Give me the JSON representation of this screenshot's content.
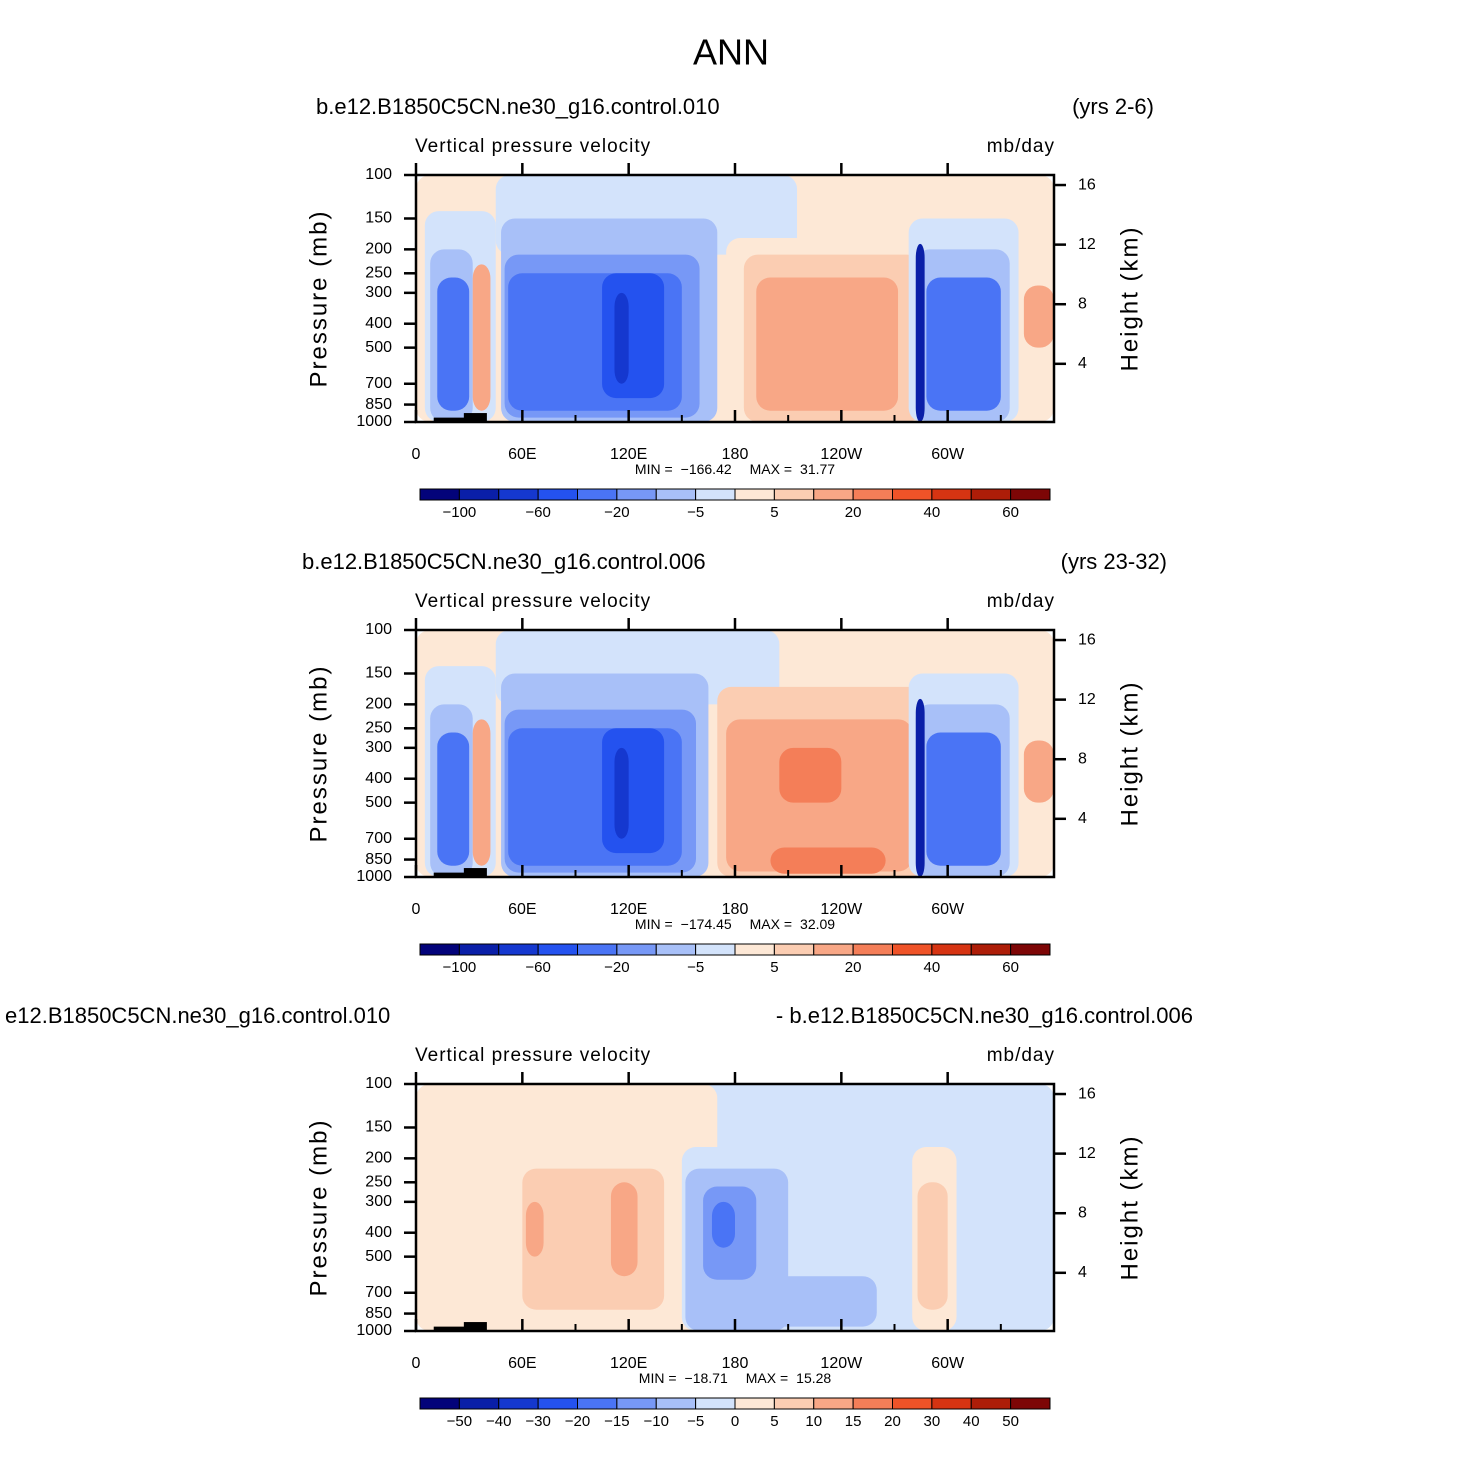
{
  "title": "ANN",
  "chart_data": [
    {
      "type": "contour",
      "title_left": "b.e12.B1850C5CN.ne30_g16.control.010",
      "title_right": "(yrs 2-6)",
      "left_string": "Vertical pressure velocity",
      "right_string": "mb/day",
      "ylabel": "Pressure (mb)",
      "y2label": "Height (km)",
      "log_y": true,
      "xlim": [
        0,
        360
      ],
      "ylim": [
        1000,
        100
      ],
      "xticks": [
        0,
        {
          "value": 60,
          "label": "60E"
        },
        {
          "value": 120,
          "label": "120E"
        },
        180,
        {
          "value": 240,
          "label": "120W"
        },
        {
          "value": 300,
          "label": "60W"
        }
      ],
      "xminorticks": [
        30,
        90,
        150,
        210,
        270,
        330
      ],
      "yticks": [
        100,
        150,
        200,
        250,
        300,
        400,
        500,
        700,
        850,
        1000
      ],
      "y2ticks": [
        4,
        8,
        12,
        16
      ],
      "stats": [
        {
          "name": "MIN =",
          "value": -166.42,
          "label": "−166.42"
        },
        {
          "name": "MAX =",
          "value": 31.77
        }
      ],
      "colorbar": {
        "colors": [
          "#03037a",
          "#0a1fa8",
          "#1538cf",
          "#2452ef",
          "#4a74f5",
          "#7798f6",
          "#a8c0f8",
          "#d3e3fb",
          "#fde8d6",
          "#fbcdb2",
          "#f8a786",
          "#f47e58",
          "#ef5328",
          "#d63412",
          "#ad1d08",
          "#7d0606"
        ],
        "ticks": [
          {
            "value": -100,
            "label": "−100"
          },
          {
            "value": -60,
            "label": "−60"
          },
          {
            "value": -20,
            "label": "−20"
          },
          {
            "value": -5,
            "label": "−5"
          },
          5,
          20,
          40,
          60
        ]
      }
    },
    {
      "type": "contour",
      "title_left": "b.e12.B1850C5CN.ne30_g16.control.006",
      "title_right": "(yrs 23-32)",
      "left_string": "Vertical pressure velocity",
      "right_string": "mb/day",
      "ylabel": "Pressure (mb)",
      "y2label": "Height (km)",
      "log_y": true,
      "xlim": [
        0,
        360
      ],
      "ylim": [
        1000,
        100
      ],
      "xticks": [
        0,
        {
          "value": 60,
          "label": "60E"
        },
        {
          "value": 120,
          "label": "120E"
        },
        180,
        {
          "value": 240,
          "label": "120W"
        },
        {
          "value": 300,
          "label": "60W"
        }
      ],
      "xminorticks": [
        30,
        90,
        150,
        210,
        270,
        330
      ],
      "yticks": [
        100,
        150,
        200,
        250,
        300,
        400,
        500,
        700,
        850,
        1000
      ],
      "y2ticks": [
        4,
        8,
        12,
        16
      ],
      "stats": [
        {
          "name": "MIN =",
          "value": -174.45,
          "label": "−174.45"
        },
        {
          "name": "MAX =",
          "value": 32.09
        }
      ],
      "colorbar": {
        "colors": [
          "#03037a",
          "#0a1fa8",
          "#1538cf",
          "#2452ef",
          "#4a74f5",
          "#7798f6",
          "#a8c0f8",
          "#d3e3fb",
          "#fde8d6",
          "#fbcdb2",
          "#f8a786",
          "#f47e58",
          "#ef5328",
          "#d63412",
          "#ad1d08",
          "#7d0606"
        ],
        "ticks": [
          {
            "value": -100,
            "label": "−100"
          },
          {
            "value": -60,
            "label": "−60"
          },
          {
            "value": -20,
            "label": "−20"
          },
          {
            "value": -5,
            "label": "−5"
          },
          5,
          20,
          40,
          60
        ]
      }
    },
    {
      "type": "contour",
      "title_left": "e12.B1850C5CN.ne30_g16.control.010",
      "title_right": "- b.e12.B1850C5CN.ne30_g16.control.006",
      "left_string": "Vertical pressure velocity",
      "right_string": "mb/day",
      "ylabel": "Pressure (mb)",
      "y2label": "Height (km)",
      "log_y": true,
      "xlim": [
        0,
        360
      ],
      "ylim": [
        1000,
        100
      ],
      "xticks": [
        0,
        {
          "value": 60,
          "label": "60E"
        },
        {
          "value": 120,
          "label": "120E"
        },
        180,
        {
          "value": 240,
          "label": "120W"
        },
        {
          "value": 300,
          "label": "60W"
        }
      ],
      "xminorticks": [
        30,
        90,
        150,
        210,
        270,
        330
      ],
      "yticks": [
        100,
        150,
        200,
        250,
        300,
        400,
        500,
        700,
        850,
        1000
      ],
      "y2ticks": [
        4,
        8,
        12,
        16
      ],
      "stats": [
        {
          "name": "MIN =",
          "value": -18.71,
          "label": "−18.71"
        },
        {
          "name": "MAX =",
          "value": 15.28
        }
      ],
      "colorbar": {
        "colors": [
          "#03037a",
          "#0a1fa8",
          "#1538cf",
          "#2452ef",
          "#4a74f5",
          "#7798f6",
          "#a8c0f8",
          "#d3e3fb",
          "#fde8d6",
          "#fbcdb2",
          "#f8a786",
          "#f47e58",
          "#ef5328",
          "#d63412",
          "#ad1d08",
          "#7d0606"
        ],
        "ticks": [
          {
            "value": -50,
            "label": "−50"
          },
          {
            "value": -40,
            "label": "−40"
          },
          {
            "value": -30,
            "label": "−30"
          },
          {
            "value": -20,
            "label": "−20"
          },
          {
            "value": -15,
            "label": "−15"
          },
          {
            "value": -10,
            "label": "−10"
          },
          {
            "value": -5,
            "label": "−5"
          },
          0,
          5,
          10,
          15,
          20,
          30,
          40,
          50
        ]
      }
    }
  ]
}
